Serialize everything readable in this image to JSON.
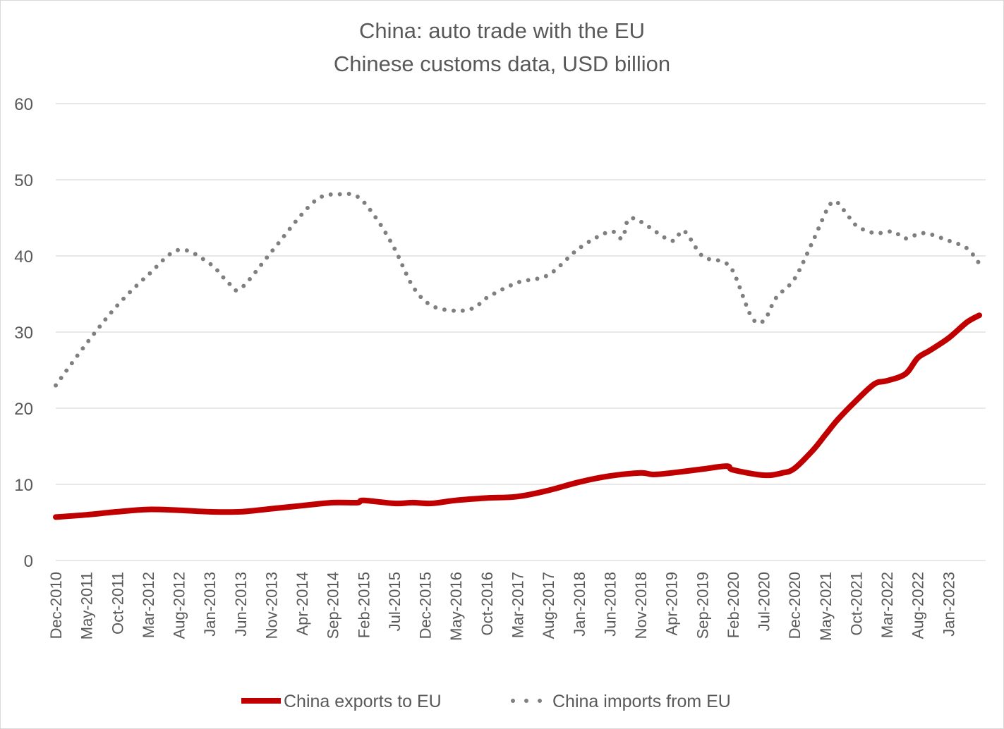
{
  "chart_data": {
    "type": "line",
    "title": "China: auto trade with the EU",
    "subtitle": "Chinese customs data, USD billion",
    "ylim": [
      0,
      60
    ],
    "yticks": [
      0,
      10,
      20,
      30,
      40,
      50,
      60
    ],
    "grid": true,
    "legend_position": "bottom",
    "x_start": "Dec-2010",
    "x_end": "Jun-2023",
    "x_tick_labels": [
      "Dec-2010",
      "May-2011",
      "Oct-2011",
      "Mar-2012",
      "Aug-2012",
      "Jan-2013",
      "Jun-2013",
      "Nov-2013",
      "Apr-2014",
      "Sep-2014",
      "Feb-2015",
      "Jul-2015",
      "Dec-2015",
      "May-2016",
      "Oct-2016",
      "Mar-2017",
      "Aug-2017",
      "Jan-2018",
      "Jun-2018",
      "Nov-2018",
      "Apr-2019",
      "Sep-2019",
      "Feb-2020",
      "Jul-2020",
      "Dec-2020",
      "May-2021",
      "Oct-2021",
      "Mar-2022",
      "Aug-2022",
      "Jan-2023"
    ],
    "series": [
      {
        "name": "China exports to EU",
        "color": "#c00000",
        "style": "solid",
        "points": [
          [
            "Dec-2010",
            5.7
          ],
          [
            "May-2011",
            6.0
          ],
          [
            "Oct-2011",
            6.4
          ],
          [
            "Mar-2012",
            6.7
          ],
          [
            "Aug-2012",
            6.6
          ],
          [
            "Jan-2013",
            6.4
          ],
          [
            "Jun-2013",
            6.4
          ],
          [
            "Nov-2013",
            6.8
          ],
          [
            "Apr-2014",
            7.2
          ],
          [
            "Sep-2014",
            7.6
          ],
          [
            "Jan-2015",
            7.6
          ],
          [
            "Feb-2015",
            7.9
          ],
          [
            "Jul-2015",
            7.5
          ],
          [
            "Oct-2015",
            7.6
          ],
          [
            "Jan-2016",
            7.5
          ],
          [
            "May-2016",
            7.9
          ],
          [
            "Oct-2016",
            8.2
          ],
          [
            "Mar-2017",
            8.4
          ],
          [
            "Aug-2017",
            9.2
          ],
          [
            "Jan-2018",
            10.3
          ],
          [
            "Jun-2018",
            11.1
          ],
          [
            "Nov-2018",
            11.5
          ],
          [
            "Jan-2019",
            11.3
          ],
          [
            "Apr-2019",
            11.5
          ],
          [
            "Sep-2019",
            12.0
          ],
          [
            "Jan-2020",
            12.4
          ],
          [
            "Feb-2020",
            11.9
          ],
          [
            "Jul-2020",
            11.2
          ],
          [
            "Oct-2020",
            11.5
          ],
          [
            "Dec-2020",
            12.1
          ],
          [
            "Mar-2021",
            14.5
          ],
          [
            "May-2021",
            16.5
          ],
          [
            "Jul-2021",
            18.5
          ],
          [
            "Oct-2021",
            21.0
          ],
          [
            "Jan-2022",
            23.2
          ],
          [
            "Mar-2022",
            23.6
          ],
          [
            "Jun-2022",
            24.5
          ],
          [
            "Aug-2022",
            26.6
          ],
          [
            "Oct-2022",
            27.6
          ],
          [
            "Jan-2023",
            29.2
          ],
          [
            "Apr-2023",
            31.3
          ],
          [
            "Jun-2023",
            32.2
          ]
        ]
      },
      {
        "name": "China imports from EU",
        "color": "#7f7f7f",
        "style": "dotted",
        "points": [
          [
            "Dec-2010",
            23.0
          ],
          [
            "May-2011",
            28.5
          ],
          [
            "Oct-2011",
            33.5
          ],
          [
            "Mar-2012",
            37.5
          ],
          [
            "Aug-2012",
            40.8
          ],
          [
            "Jan-2013",
            39.0
          ],
          [
            "Apr-2013",
            36.5
          ],
          [
            "Jun-2013",
            35.7
          ],
          [
            "Nov-2013",
            40.5
          ],
          [
            "Apr-2014",
            45.5
          ],
          [
            "Jul-2014",
            47.7
          ],
          [
            "Oct-2014",
            48.1
          ],
          [
            "Jan-2015",
            47.8
          ],
          [
            "Apr-2015",
            45.0
          ],
          [
            "Jul-2015",
            41.0
          ],
          [
            "Oct-2015",
            36.0
          ],
          [
            "Jan-2016",
            33.5
          ],
          [
            "May-2016",
            32.8
          ],
          [
            "Aug-2016",
            33.2
          ],
          [
            "Oct-2016",
            34.5
          ],
          [
            "Mar-2017",
            36.5
          ],
          [
            "Aug-2017",
            37.5
          ],
          [
            "Jan-2018",
            41.0
          ],
          [
            "Jun-2018",
            43.2
          ],
          [
            "Aug-2018",
            42.3
          ],
          [
            "Sep-2018",
            44.8
          ],
          [
            "Nov-2018",
            44.5
          ],
          [
            "Apr-2019",
            42.0
          ],
          [
            "Jun-2019",
            43.3
          ],
          [
            "Sep-2019",
            40.0
          ],
          [
            "Dec-2019",
            39.3
          ],
          [
            "Feb-2020",
            38.0
          ],
          [
            "May-2020",
            32.0
          ],
          [
            "Jul-2020",
            31.5
          ],
          [
            "Sep-2020",
            34.5
          ],
          [
            "Dec-2020",
            37.0
          ],
          [
            "Mar-2021",
            42.0
          ],
          [
            "Jun-2021",
            47.0
          ],
          [
            "Aug-2021",
            46.0
          ],
          [
            "Oct-2021",
            44.0
          ],
          [
            "Jan-2022",
            43.0
          ],
          [
            "Apr-2022",
            43.2
          ],
          [
            "Jun-2022",
            42.3
          ],
          [
            "Sep-2022",
            43.0
          ],
          [
            "Jan-2023",
            42.0
          ],
          [
            "Apr-2023",
            41.0
          ],
          [
            "Jun-2023",
            39.0
          ]
        ]
      }
    ]
  }
}
